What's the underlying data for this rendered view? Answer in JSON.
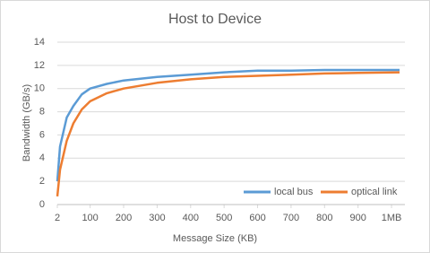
{
  "chart_data": {
    "type": "line",
    "title": "Host to Device",
    "x_label": "Message Size (KB)",
    "y_label": "Bandwidth (GB/s)",
    "x": [
      2,
      10,
      30,
      50,
      75,
      100,
      150,
      200,
      300,
      400,
      500,
      600,
      700,
      800,
      900,
      1024
    ],
    "series": [
      {
        "name": "local bus",
        "color": "#5b9bd5",
        "values": [
          2,
          5,
          7.5,
          8.5,
          9.5,
          10,
          10.4,
          10.7,
          11.0,
          11.2,
          11.4,
          11.55,
          11.55,
          11.6,
          11.6,
          11.6
        ]
      },
      {
        "name": "optical link",
        "color": "#ed7d31",
        "values": [
          0.7,
          3,
          5.5,
          7,
          8.2,
          8.9,
          9.6,
          10,
          10.5,
          10.8,
          11.0,
          11.1,
          11.2,
          11.3,
          11.35,
          11.4
        ]
      }
    ],
    "xlim": [
      2,
      1040
    ],
    "xticks": [
      2,
      100,
      200,
      300,
      400,
      500,
      600,
      700,
      800,
      900,
      {
        "value": 1000,
        "label": "1MB"
      }
    ],
    "ylim": [
      0,
      14
    ],
    "yticks": [
      0,
      2,
      4,
      6,
      8,
      10,
      12,
      14
    ],
    "grid": true,
    "legend": "bottom-right"
  }
}
